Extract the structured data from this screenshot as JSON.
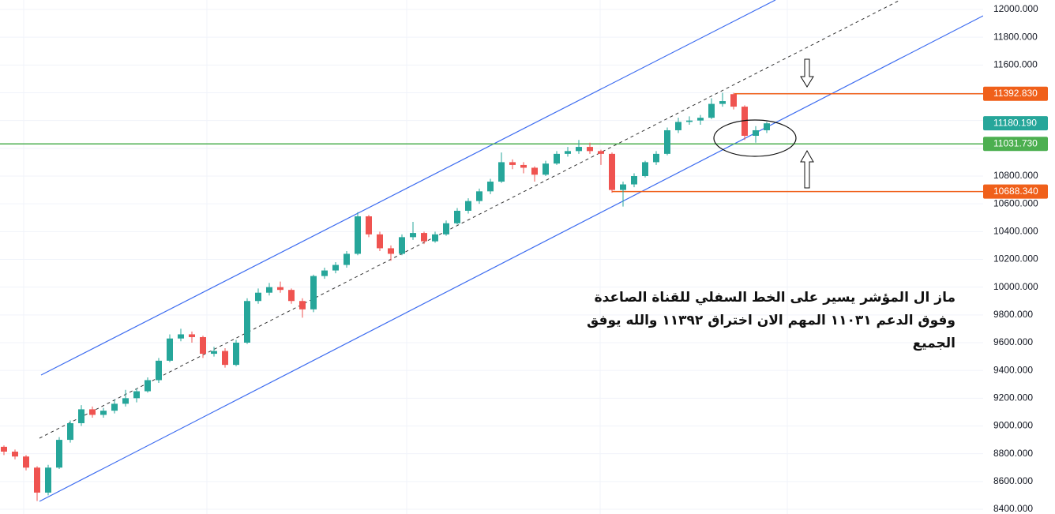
{
  "chart_data": {
    "type": "candlestick",
    "ylim": [
      8400,
      12000
    ],
    "yticks": [
      {
        "value": 8400,
        "label": "8400.000"
      },
      {
        "value": 8600,
        "label": "8600.000"
      },
      {
        "value": 8800,
        "label": "8800.000"
      },
      {
        "value": 9000,
        "label": "9000.000"
      },
      {
        "value": 9200,
        "label": "9200.000"
      },
      {
        "value": 9400,
        "label": "9400.000"
      },
      {
        "value": 9600,
        "label": "9600.000"
      },
      {
        "value": 9800,
        "label": "9800.000"
      },
      {
        "value": 10000,
        "label": "10000.000"
      },
      {
        "value": 10200,
        "label": "10200.000"
      },
      {
        "value": 10400,
        "label": "10400.000"
      },
      {
        "value": 10600,
        "label": "10600.000"
      },
      {
        "value": 10800,
        "label": "10800.000"
      },
      {
        "value": 11000,
        "label": "11000.000"
      },
      {
        "value": 11200,
        "label": "11200.000"
      },
      {
        "value": 11400,
        "label": "11400.000"
      },
      {
        "value": 11600,
        "label": "11600.000"
      },
      {
        "value": 11800,
        "label": "11800.000"
      },
      {
        "value": 12000,
        "label": "12000.000"
      }
    ],
    "grid": true,
    "up_color": "#26a69a",
    "down_color": "#ef5350",
    "candles": [
      [
        8850,
        8860,
        8790,
        8815
      ],
      [
        8815,
        8830,
        8760,
        8780
      ],
      [
        8780,
        8790,
        8680,
        8700
      ],
      [
        8700,
        8710,
        8460,
        8520
      ],
      [
        8520,
        8720,
        8500,
        8700
      ],
      [
        8700,
        8920,
        8690,
        8900
      ],
      [
        8900,
        9040,
        8880,
        9020
      ],
      [
        9020,
        9150,
        9000,
        9120
      ],
      [
        9120,
        9140,
        9060,
        9080
      ],
      [
        9080,
        9130,
        9060,
        9110
      ],
      [
        9110,
        9190,
        9090,
        9160
      ],
      [
        9160,
        9260,
        9140,
        9200
      ],
      [
        9200,
        9270,
        9170,
        9250
      ],
      [
        9250,
        9350,
        9240,
        9330
      ],
      [
        9330,
        9490,
        9310,
        9470
      ],
      [
        9470,
        9660,
        9460,
        9630
      ],
      [
        9630,
        9700,
        9610,
        9660
      ],
      [
        9660,
        9680,
        9600,
        9640
      ],
      [
        9640,
        9650,
        9490,
        9520
      ],
      [
        9520,
        9570,
        9500,
        9540
      ],
      [
        9540,
        9560,
        9420,
        9440
      ],
      [
        9440,
        9620,
        9430,
        9600
      ],
      [
        9600,
        9920,
        9590,
        9900
      ],
      [
        9900,
        9990,
        9880,
        9960
      ],
      [
        9960,
        10030,
        9940,
        10000
      ],
      [
        10000,
        10040,
        9960,
        9980
      ],
      [
        9980,
        9990,
        9880,
        9900
      ],
      [
        9900,
        9920,
        9780,
        9840
      ],
      [
        9840,
        10090,
        9820,
        10080
      ],
      [
        10080,
        10140,
        10060,
        10120
      ],
      [
        10120,
        10180,
        10100,
        10160
      ],
      [
        10160,
        10260,
        10140,
        10240
      ],
      [
        10240,
        10540,
        10230,
        10510
      ],
      [
        10510,
        10520,
        10360,
        10380
      ],
      [
        10380,
        10400,
        10260,
        10280
      ],
      [
        10280,
        10300,
        10190,
        10240
      ],
      [
        10240,
        10380,
        10230,
        10360
      ],
      [
        10360,
        10470,
        10340,
        10390
      ],
      [
        10390,
        10400,
        10310,
        10330
      ],
      [
        10330,
        10400,
        10320,
        10380
      ],
      [
        10380,
        10480,
        10370,
        10460
      ],
      [
        10460,
        10570,
        10450,
        10550
      ],
      [
        10550,
        10640,
        10530,
        10620
      ],
      [
        10620,
        10710,
        10600,
        10690
      ],
      [
        10690,
        10780,
        10670,
        10760
      ],
      [
        10760,
        10970,
        10750,
        10900
      ],
      [
        10900,
        10920,
        10850,
        10880
      ],
      [
        10880,
        10900,
        10820,
        10860
      ],
      [
        10860,
        10870,
        10760,
        10810
      ],
      [
        10810,
        10910,
        10800,
        10890
      ],
      [
        10890,
        10980,
        10880,
        10960
      ],
      [
        10960,
        11010,
        10940,
        10980
      ],
      [
        10980,
        11060,
        10960,
        11010
      ],
      [
        11010,
        11040,
        10960,
        10980
      ],
      [
        10980,
        10990,
        10880,
        10960
      ],
      [
        10960,
        10970,
        10680,
        10700
      ],
      [
        10700,
        10760,
        10580,
        10740
      ],
      [
        10740,
        10820,
        10720,
        10800
      ],
      [
        10800,
        10910,
        10790,
        10900
      ],
      [
        10900,
        10980,
        10880,
        10960
      ],
      [
        10960,
        11150,
        10950,
        11130
      ],
      [
        11130,
        11220,
        11110,
        11190
      ],
      [
        11190,
        11230,
        11170,
        11200
      ],
      [
        11200,
        11240,
        11170,
        11220
      ],
      [
        11220,
        11360,
        11210,
        11320
      ],
      [
        11320,
        11400,
        11300,
        11340
      ],
      [
        11390,
        11400,
        11280,
        11300
      ],
      [
        11300,
        11310,
        11060,
        11090
      ],
      [
        11090,
        11160,
        11040,
        11130
      ],
      [
        11130,
        11190,
        11110,
        11180
      ]
    ],
    "levels": [
      {
        "value": 11392.83,
        "label": "11392.830",
        "color": "#f0601a"
      },
      {
        "value": 11180.19,
        "label": "11180.190",
        "color": "#26a69a"
      },
      {
        "value": 11031.73,
        "label": "11031.730",
        "color": "#4caf50"
      },
      {
        "value": 10688.34,
        "label": "10688.340",
        "color": "#f0601a"
      }
    ],
    "annotation": [
      "ماز ال المؤشر يسير على الخط السفلي للقناة الصاعدة",
      "وفوق الدعم ١١٠٣١ المهم الان اختراق ١١٣٩٢ والله يوفق",
      "الجميع"
    ]
  }
}
